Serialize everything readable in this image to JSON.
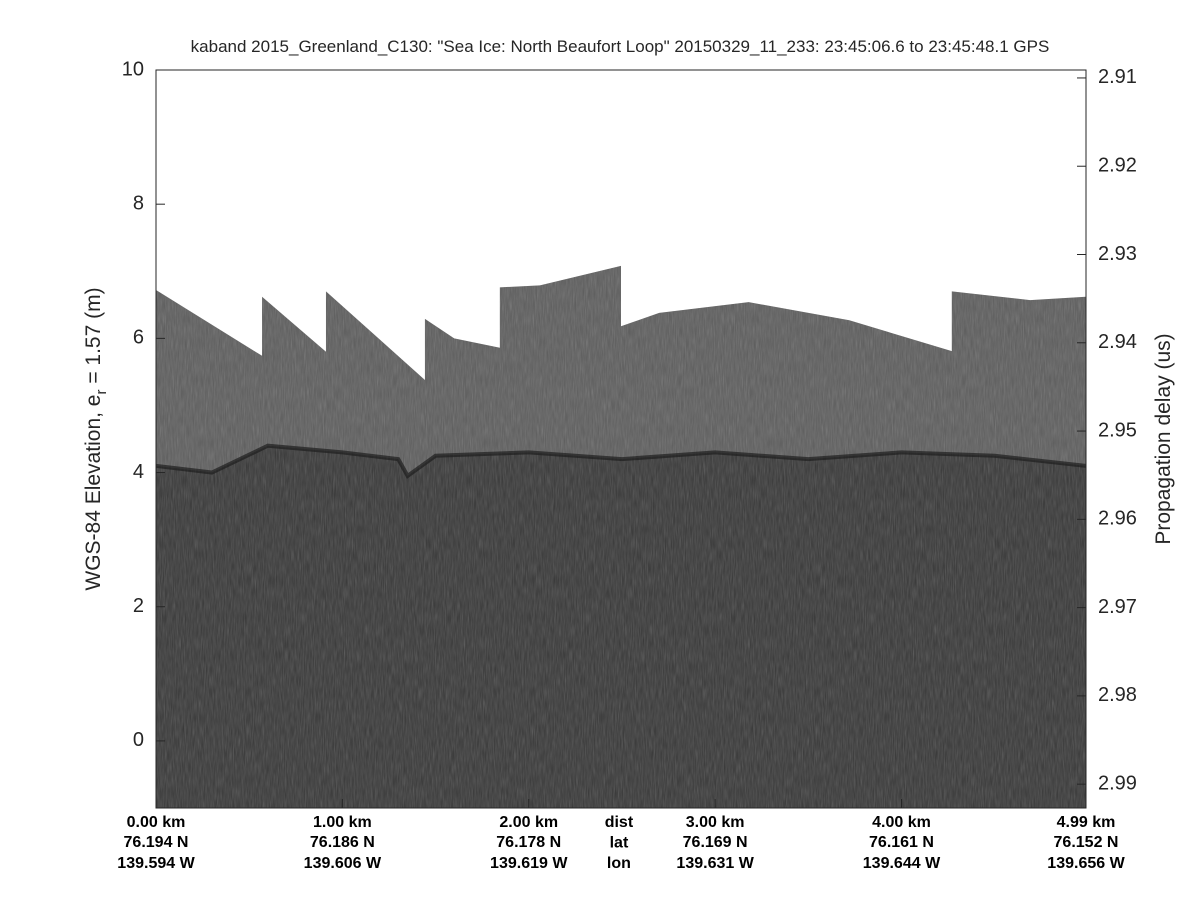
{
  "chart_data": {
    "type": "echogram",
    "title": "kaband 2015_Greenland_C130: \"Sea Ice: North Beaufort Loop\"  20150329_11_233: 23:45:06.6 to 23:45:48.1 GPS",
    "ylabel_parts": [
      "WGS-84 Elevation, e",
      "r",
      " = 1.57 (m)"
    ],
    "y2label": "Propagation delay (us)",
    "xlim": [
      0,
      4.99
    ],
    "ylim": [
      -1,
      10
    ],
    "yticks": [
      0,
      2,
      4,
      6,
      8,
      10
    ],
    "y2lim": [
      2.9927,
      2.9091
    ],
    "y2ticks": [
      2.91,
      2.92,
      2.93,
      2.94,
      2.95,
      2.96,
      2.97,
      2.98,
      2.99
    ],
    "xticks": [
      {
        "value": 0,
        "label": "0.00 km"
      },
      {
        "value": 1,
        "label": "1.00 km"
      },
      {
        "value": 2,
        "label": "2.00 km"
      },
      {
        "value": 3,
        "label": "3.00 km"
      },
      {
        "value": 4,
        "label": "4.00 km"
      },
      {
        "value": 4.99,
        "label": "4.99 km"
      }
    ],
    "lat_labels": [
      "76.194 N",
      "76.186 N",
      "76.178 N",
      "76.169 N",
      "76.161 N",
      "76.152 N"
    ],
    "lon_labels": [
      "139.594 W",
      "139.606 W",
      "139.619 W",
      "139.631 W",
      "139.644 W",
      "139.656 W"
    ],
    "row_labels": [
      "dist",
      "lat",
      "lon"
    ],
    "surface": {
      "x": [
        0,
        0.569,
        0.569,
        0.912,
        0.912,
        1.443,
        1.443,
        1.6,
        1.845,
        1.845,
        2.06,
        2.495,
        2.495,
        2.7,
        3.18,
        3.72,
        4.27,
        4.27,
        4.69,
        4.99
      ],
      "values": [
        6.72,
        5.74,
        6.62,
        5.8,
        6.7,
        5.38,
        6.29,
        6.0,
        5.86,
        6.76,
        6.79,
        7.08,
        6.18,
        6.38,
        6.54,
        6.27,
        5.81,
        6.7,
        6.57,
        6.62
      ]
    },
    "interface": {
      "x": [
        0,
        0.3,
        0.6,
        1.0,
        1.3,
        1.35,
        1.5,
        2.0,
        2.5,
        3.0,
        3.5,
        4.0,
        4.5,
        4.99
      ],
      "values": [
        4.1,
        4.0,
        4.4,
        4.3,
        4.2,
        3.95,
        4.25,
        4.3,
        4.2,
        4.3,
        4.2,
        4.3,
        4.25,
        4.1
      ]
    }
  }
}
